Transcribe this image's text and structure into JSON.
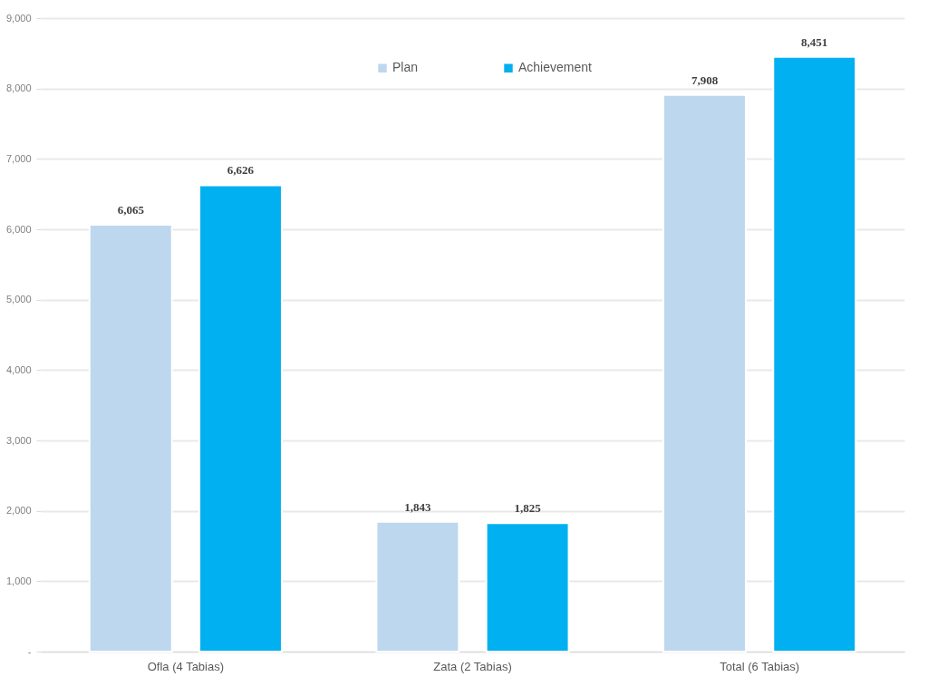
{
  "chart_data": {
    "type": "bar",
    "categories": [
      "Ofla (4 Tabias)",
      "Zata (2 Tabias)",
      "Total (6 Tabias)"
    ],
    "series": [
      {
        "name": "Plan",
        "color": "#bdd7ee",
        "values": [
          6065,
          1843,
          7908
        ],
        "value_labels": [
          "6,065",
          "1,843",
          "7,908"
        ]
      },
      {
        "name": "Achievement",
        "color": "#00b0f0",
        "values": [
          6626,
          1825,
          8451
        ],
        "value_labels": [
          "6,626",
          "1,825",
          "8,451"
        ]
      }
    ],
    "ylim": [
      0,
      9000
    ],
    "yticks": [
      {
        "value": 0,
        "label": "-"
      },
      {
        "value": 1000,
        "label": "1,000"
      },
      {
        "value": 2000,
        "label": "2,000"
      },
      {
        "value": 3000,
        "label": "3,000"
      },
      {
        "value": 4000,
        "label": "4,000"
      },
      {
        "value": 5000,
        "label": "5,000"
      },
      {
        "value": 6000,
        "label": "6,000"
      },
      {
        "value": 7000,
        "label": "7,000"
      },
      {
        "value": 8000,
        "label": "8,000"
      },
      {
        "value": 9000,
        "label": "9,000"
      }
    ],
    "grid": "y",
    "legend": "top"
  }
}
